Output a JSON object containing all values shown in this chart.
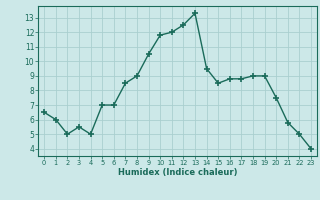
{
  "x": [
    0,
    1,
    2,
    3,
    4,
    5,
    6,
    7,
    8,
    9,
    10,
    11,
    12,
    13,
    14,
    15,
    16,
    17,
    18,
    19,
    20,
    21,
    22,
    23
  ],
  "y": [
    6.5,
    6.0,
    5.0,
    5.5,
    5.0,
    7.0,
    7.0,
    8.5,
    9.0,
    10.5,
    11.8,
    12.0,
    12.5,
    13.3,
    9.5,
    8.5,
    8.8,
    8.8,
    9.0,
    9.0,
    7.5,
    5.8,
    5.0,
    4.0
  ],
  "xlabel": "Humidex (Indice chaleur)",
  "xlim": [
    -0.5,
    23.5
  ],
  "ylim": [
    3.5,
    13.8
  ],
  "yticks": [
    4,
    5,
    6,
    7,
    8,
    9,
    10,
    11,
    12,
    13
  ],
  "xticks": [
    0,
    1,
    2,
    3,
    4,
    5,
    6,
    7,
    8,
    9,
    10,
    11,
    12,
    13,
    14,
    15,
    16,
    17,
    18,
    19,
    20,
    21,
    22,
    23
  ],
  "line_color": "#1a6b5a",
  "marker_color": "#1a6b5a",
  "bg_color": "#cce8e8",
  "grid_color": "#aacfcf",
  "axis_color": "#1a6b5a",
  "tick_color": "#1a6b5a",
  "xlabel_color": "#1a6b5a"
}
